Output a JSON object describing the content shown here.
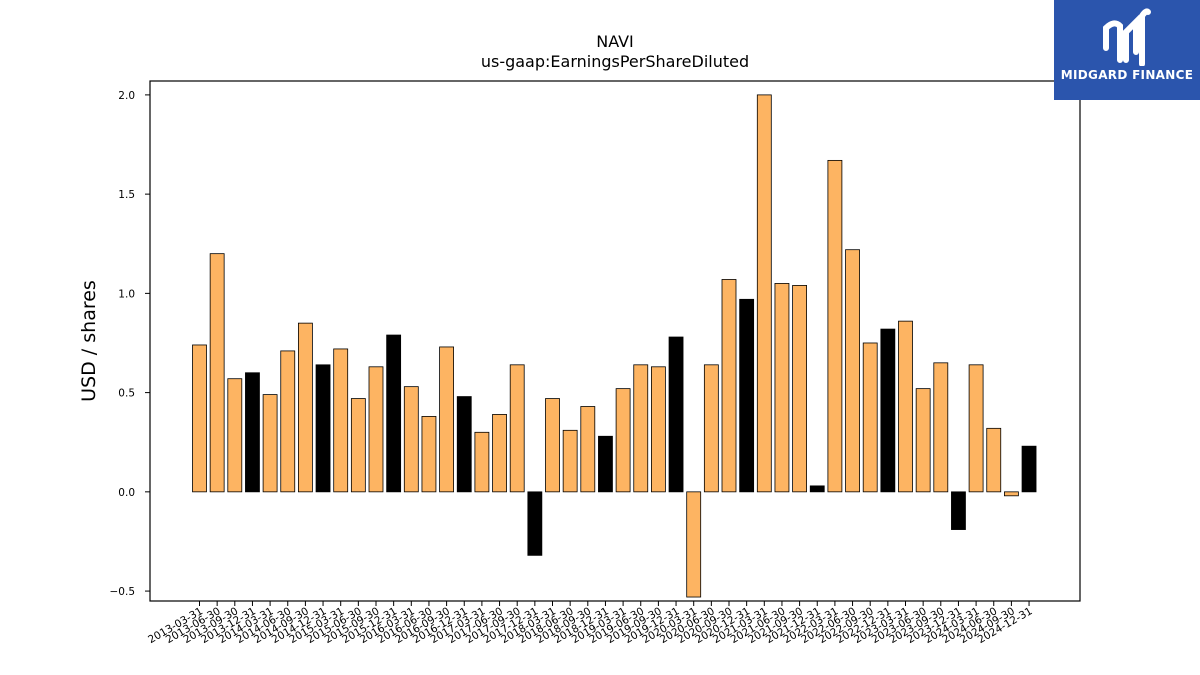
{
  "brand": {
    "name": "MIDGARD FINANCE",
    "logo_icon": "midgard-logo-icon",
    "background": "#2b55ad"
  },
  "chart_data": {
    "type": "bar",
    "title": "NAVI",
    "subtitle": "us-gaap:EarningsPerShareDiluted",
    "xlabel": "",
    "ylabel": "USD / shares",
    "ylim": [
      -0.55,
      2.07
    ],
    "yticks": [
      -0.5,
      0.0,
      0.5,
      1.0,
      1.5,
      2.0
    ],
    "ytick_labels": [
      "−0.5",
      "0.0",
      "0.5",
      "1.0",
      "1.5",
      "2.0"
    ],
    "grid": false,
    "colors": {
      "default": "#fdb462",
      "q4": "#000000",
      "edge": "#000000"
    },
    "categories": [
      "2013-03-31",
      "2013-06-30",
      "2013-09-30",
      "2013-12-31",
      "2014-03-31",
      "2014-06-30",
      "2014-09-30",
      "2014-12-31",
      "2015-03-31",
      "2015-06-30",
      "2015-09-30",
      "2015-12-31",
      "2016-03-31",
      "2016-06-30",
      "2016-09-30",
      "2016-12-31",
      "2017-03-31",
      "2017-06-30",
      "2017-09-30",
      "2017-12-31",
      "2018-03-31",
      "2018-06-30",
      "2018-09-30",
      "2018-12-31",
      "2019-03-31",
      "2019-06-30",
      "2019-09-30",
      "2019-12-31",
      "2020-03-31",
      "2020-06-30",
      "2020-09-30",
      "2020-12-31",
      "2021-03-31",
      "2021-06-30",
      "2021-09-30",
      "2021-12-31",
      "2022-03-31",
      "2022-06-30",
      "2022-09-30",
      "2022-12-31",
      "2023-03-31",
      "2023-06-30",
      "2023-09-30",
      "2023-12-31",
      "2024-03-31",
      "2024-06-30",
      "2024-09-30",
      "2024-12-31"
    ],
    "values": [
      0.74,
      1.2,
      0.57,
      0.6,
      0.49,
      0.71,
      0.85,
      0.64,
      0.72,
      0.47,
      0.63,
      0.79,
      0.53,
      0.38,
      0.73,
      0.48,
      0.3,
      0.39,
      0.64,
      -0.32,
      0.47,
      0.31,
      0.43,
      0.28,
      0.52,
      0.64,
      0.63,
      0.78,
      -0.53,
      0.64,
      1.07,
      0.97,
      2.0,
      1.05,
      1.04,
      0.03,
      1.67,
      1.22,
      0.75,
      0.82,
      0.86,
      0.52,
      0.65,
      -0.19,
      0.64,
      0.32,
      -0.02,
      0.23
    ]
  }
}
